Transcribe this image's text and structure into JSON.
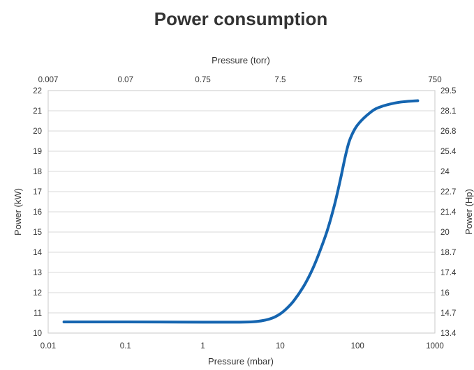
{
  "chart_data": {
    "type": "line",
    "title": "Power consumption",
    "xlabel": "Pressure (mbar)",
    "x2label": "Pressure (torr)",
    "ylabel": "Power (kW)",
    "y2label": "Power (Hp)",
    "xscale": "log",
    "xlim": [
      0.01,
      1000
    ],
    "ylim": [
      10,
      22
    ],
    "y2lim": [
      13.4,
      29.5
    ],
    "x_ticks": [
      "0.01",
      "0.1",
      "1",
      "10",
      "100",
      "1000"
    ],
    "x2_ticks": [
      "0.007",
      "0.07",
      "0.75",
      "7.5",
      "75",
      "750"
    ],
    "y_ticks": [
      "10",
      "11",
      "12",
      "13",
      "14",
      "15",
      "16",
      "17",
      "18",
      "19",
      "20",
      "21",
      "22"
    ],
    "y2_ticks": [
      "13.4",
      "14.7",
      "16",
      "17.4",
      "18.7",
      "20",
      "21.4",
      "22.7",
      "24",
      "25.4",
      "26.8",
      "28.1",
      "29.5"
    ],
    "grid": "horizontal",
    "line_color": "#1565b0",
    "series": [
      {
        "x": [
          0.016,
          0.1,
          1,
          3,
          4.5,
          6,
          8,
          10,
          12,
          15,
          20,
          25,
          30,
          40,
          50,
          60,
          70,
          80,
          100,
          150,
          200,
          300,
          400,
          600
        ],
        "y": [
          10.55,
          10.55,
          10.54,
          10.54,
          10.56,
          10.62,
          10.75,
          10.95,
          11.2,
          11.6,
          12.3,
          13.0,
          13.7,
          15.0,
          16.3,
          17.6,
          18.8,
          19.6,
          20.3,
          20.95,
          21.2,
          21.38,
          21.45,
          21.5
        ]
      }
    ]
  }
}
